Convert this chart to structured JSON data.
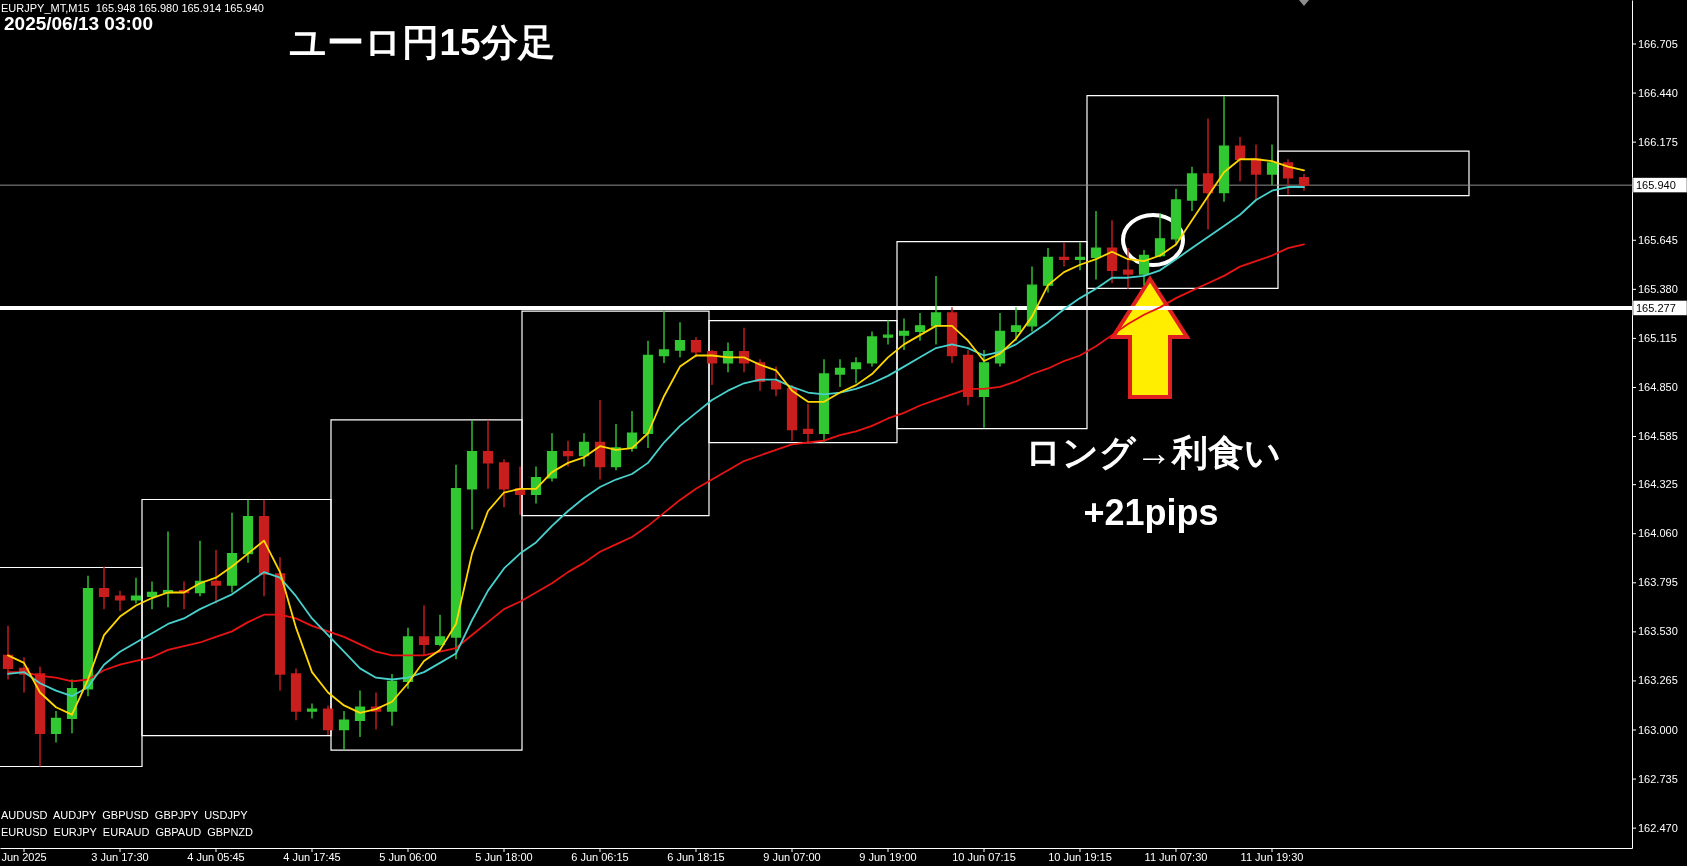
{
  "chart_data": {
    "type": "candlestick",
    "title": "ユーロ円15分足",
    "subtitle": "2025/06/13 03:00",
    "annotations": [
      "EURJPY_MT,M15  165.948 165.980 165.914 165.940",
      "ロング→利食い",
      "+21pips",
      "AUDUSD  AUDJPY  GBPUSD  GBPJPY  USDJPY",
      "EURUSD  EURJPY  EURAUD  GBPAUD  GBPNZD"
    ],
    "categories": [
      null,
      "Jun 2025",
      null,
      null,
      null,
      null,
      null,
      "3 Jun 17:30",
      null,
      null,
      null,
      null,
      null,
      "4 Jun 05:45",
      null,
      null,
      null,
      null,
      null,
      "4 Jun 17:45",
      null,
      null,
      null,
      null,
      null,
      "5 Jun 06:00",
      null,
      null,
      null,
      null,
      null,
      "5 Jun 18:00",
      null,
      null,
      null,
      null,
      null,
      "6 Jun 06:15",
      null,
      null,
      null,
      null,
      null,
      "6 Jun 18:15",
      null,
      null,
      null,
      null,
      null,
      "9 Jun 07:00",
      null,
      null,
      null,
      null,
      null,
      "9 Jun 19:00",
      null,
      null,
      null,
      null,
      null,
      "10 Jun 07:15",
      null,
      null,
      null,
      null,
      null,
      "10 Jun 19:15",
      null,
      null,
      null,
      null,
      null,
      "11 Jun 07:30",
      null,
      null,
      null,
      null,
      null,
      "11 Jun 19:30",
      null,
      null,
      null,
      null,
      null,
      null,
      null,
      null,
      null,
      null,
      null,
      null,
      null,
      null,
      null,
      null,
      null,
      null,
      null,
      null,
      null,
      null
    ],
    "ohlc": [
      [
        163.4,
        163.56,
        163.27,
        163.33
      ],
      [
        163.33,
        163.39,
        163.2,
        163.3
      ],
      [
        163.3,
        163.34,
        162.8,
        162.98
      ],
      [
        162.98,
        163.1,
        162.93,
        163.06
      ],
      [
        163.06,
        163.27,
        162.98,
        163.22
      ],
      [
        163.22,
        163.83,
        163.18,
        163.76
      ],
      [
        163.76,
        163.88,
        163.65,
        163.72
      ],
      [
        163.72,
        163.75,
        163.64,
        163.7
      ],
      [
        163.7,
        163.82,
        163.68,
        163.72
      ],
      [
        163.72,
        163.8,
        163.65,
        163.74
      ],
      [
        163.74,
        164.07,
        163.66,
        163.75
      ],
      [
        163.75,
        163.8,
        163.65,
        163.74
      ],
      [
        163.74,
        164.02,
        163.72,
        163.8
      ],
      [
        163.8,
        163.97,
        163.68,
        163.78
      ],
      [
        163.78,
        164.17,
        163.74,
        163.95
      ],
      [
        163.95,
        164.24,
        163.9,
        164.15
      ],
      [
        164.15,
        164.24,
        163.72,
        163.84
      ],
      [
        163.84,
        163.93,
        163.21,
        163.3
      ],
      [
        163.3,
        163.33,
        163.05,
        163.1
      ],
      [
        163.1,
        163.14,
        163.06,
        163.11
      ],
      [
        163.11,
        163.13,
        162.97,
        163.0
      ],
      [
        163.0,
        163.1,
        162.89,
        163.05
      ],
      [
        163.05,
        163.21,
        162.96,
        163.12
      ],
      [
        163.12,
        163.2,
        163.0,
        163.1
      ],
      [
        163.1,
        163.3,
        163.02,
        163.26
      ],
      [
        163.26,
        163.55,
        163.22,
        163.5
      ],
      [
        163.5,
        163.67,
        163.4,
        163.46
      ],
      [
        163.46,
        163.62,
        163.45,
        163.5
      ],
      [
        163.5,
        164.43,
        163.38,
        164.3
      ],
      [
        164.3,
        164.67,
        164.08,
        164.5
      ],
      [
        164.5,
        164.67,
        164.3,
        164.44
      ],
      [
        164.44,
        164.46,
        164.2,
        164.3
      ],
      [
        164.3,
        164.42,
        164.16,
        164.27
      ],
      [
        164.27,
        164.42,
        164.22,
        164.36
      ],
      [
        164.36,
        164.6,
        164.34,
        164.5
      ],
      [
        164.5,
        164.56,
        164.42,
        164.48
      ],
      [
        164.48,
        164.6,
        164.42,
        164.55
      ],
      [
        164.55,
        164.78,
        164.35,
        164.42
      ],
      [
        164.42,
        164.65,
        164.4,
        164.52
      ],
      [
        164.52,
        164.72,
        164.5,
        164.6
      ],
      [
        164.6,
        165.1,
        164.52,
        165.02
      ],
      [
        165.02,
        165.26,
        164.98,
        165.05
      ],
      [
        165.05,
        165.2,
        165.01,
        165.1
      ],
      [
        165.1,
        165.12,
        165.01,
        165.04
      ],
      [
        165.04,
        165.05,
        164.86,
        164.98
      ],
      [
        164.98,
        165.09,
        164.93,
        165.04
      ],
      [
        165.04,
        165.17,
        164.93,
        164.98
      ],
      [
        164.98,
        165.0,
        164.83,
        164.88
      ],
      [
        164.88,
        164.96,
        164.8,
        164.84
      ],
      [
        164.84,
        164.86,
        164.56,
        164.62
      ],
      [
        164.62,
        164.76,
        164.55,
        164.6
      ],
      [
        164.6,
        165.0,
        164.55,
        164.92
      ],
      [
        164.92,
        165.0,
        164.85,
        164.95
      ],
      [
        164.95,
        165.01,
        164.87,
        164.98
      ],
      [
        164.98,
        165.15,
        164.96,
        165.12
      ],
      [
        165.12,
        165.21,
        165.08,
        165.13
      ],
      [
        165.13,
        165.22,
        165.05,
        165.15
      ],
      [
        165.15,
        165.25,
        165.1,
        165.18
      ],
      [
        165.18,
        165.45,
        165.08,
        165.25
      ],
      [
        165.25,
        165.28,
        164.98,
        165.02
      ],
      [
        165.02,
        165.05,
        164.75,
        164.8
      ],
      [
        164.8,
        165.05,
        164.63,
        164.98
      ],
      [
        164.98,
        165.25,
        164.96,
        165.15
      ],
      [
        165.15,
        165.28,
        165.1,
        165.18
      ],
      [
        165.18,
        165.5,
        165.15,
        165.4
      ],
      [
        165.4,
        165.6,
        165.36,
        165.55
      ],
      [
        165.55,
        165.63,
        165.5,
        165.54
      ],
      [
        165.54,
        165.63,
        165.48,
        165.55
      ],
      [
        165.55,
        165.8,
        165.43,
        165.6
      ],
      [
        165.6,
        165.75,
        165.41,
        165.48
      ],
      [
        165.48,
        165.6,
        165.38,
        165.46
      ],
      [
        165.46,
        165.59,
        165.4,
        165.56
      ],
      [
        165.56,
        165.79,
        165.55,
        165.65
      ],
      [
        165.65,
        165.92,
        165.62,
        165.86
      ],
      [
        165.86,
        166.04,
        165.8,
        166.0
      ],
      [
        166.0,
        166.3,
        165.7,
        165.9
      ],
      [
        165.9,
        166.42,
        165.85,
        166.15
      ],
      [
        166.15,
        166.2,
        165.96,
        166.08
      ],
      [
        166.08,
        166.16,
        165.86,
        166.0
      ],
      [
        166.0,
        166.16,
        165.94,
        166.06
      ],
      [
        166.06,
        166.08,
        165.89,
        165.98
      ],
      [
        165.98,
        166.0,
        165.91,
        165.94
      ],
      null,
      null,
      null,
      null,
      null,
      null,
      null,
      null,
      null,
      null,
      null,
      null,
      null,
      null,
      null,
      null,
      null,
      null,
      null,
      null
    ],
    "colors": [
      "#c81e1e",
      "#c81e1e",
      "#c81e1e",
      "#32c832",
      "#32c832",
      "#32c832",
      "#c81e1e",
      "#c81e1e",
      "#32c832",
      "#32c832",
      "#32c832",
      "#c81e1e",
      "#32c832",
      "#c81e1e",
      "#32c832",
      "#32c832",
      "#c81e1e",
      "#c81e1e",
      "#c81e1e",
      "#32c832",
      "#c81e1e",
      "#32c832",
      "#32c832",
      "#c81e1e",
      "#32c832",
      "#32c832",
      "#c81e1e",
      "#32c832",
      "#32c832",
      "#32c832",
      "#c81e1e",
      "#c81e1e",
      "#c81e1e",
      "#32c832",
      "#32c832",
      "#c81e1e",
      "#32c832",
      "#c81e1e",
      "#32c832",
      "#32c832",
      "#32c832",
      "#32c832",
      "#32c832",
      "#c81e1e",
      "#c81e1e",
      "#32c832",
      "#c81e1e",
      "#c81e1e",
      "#c81e1e",
      "#c81e1e",
      "#c81e1e",
      "#32c832",
      "#32c832",
      "#32c832",
      "#32c832",
      "#32c832",
      "#32c832",
      "#32c832",
      "#32c832",
      "#c81e1e",
      "#c81e1e",
      "#32c832",
      "#32c832",
      "#32c832",
      "#32c832",
      "#32c832",
      "#c81e1e",
      "#32c832",
      "#32c832",
      "#c81e1e",
      "#c81e1e",
      "#32c832",
      "#32c832",
      "#32c832",
      "#32c832",
      "#c81e1e",
      "#32c832",
      "#c81e1e",
      "#c81e1e",
      "#32c832",
      "#c81e1e",
      "#c81e1e",
      null,
      null,
      null,
      null,
      null,
      null,
      null,
      null,
      null,
      null,
      null,
      null,
      null,
      null,
      null,
      null,
      null,
      null,
      null,
      null
    ],
    "series": [
      {
        "type": "line",
        "color": "#e81414",
        "values": [
          163.31,
          163.31,
          163.29,
          163.28,
          163.26,
          163.27,
          163.32,
          163.35,
          163.37,
          163.39,
          163.43,
          163.45,
          163.47,
          163.5,
          163.53,
          163.58,
          163.62,
          163.62,
          163.6,
          163.56,
          163.53,
          163.5,
          163.46,
          163.42,
          163.4,
          163.4,
          163.4,
          163.42,
          163.44,
          163.51,
          163.58,
          163.65,
          163.69,
          163.74,
          163.79,
          163.85,
          163.9,
          163.96,
          164.0,
          164.04,
          164.1,
          164.17,
          164.24,
          164.3,
          164.35,
          164.4,
          164.45,
          164.48,
          164.51,
          164.54,
          164.55,
          164.56,
          164.59,
          164.61,
          164.64,
          164.68,
          164.71,
          164.75,
          164.78,
          164.81,
          164.84,
          164.84,
          164.85,
          164.88,
          164.92,
          164.95,
          164.99,
          165.02,
          165.07,
          165.13,
          165.19,
          165.24,
          165.28,
          165.33,
          165.37,
          165.41,
          165.45,
          165.5,
          165.53,
          165.56,
          165.6,
          165.62,
          null,
          null,
          null,
          null,
          null,
          null,
          null,
          null,
          null,
          null,
          null,
          null,
          null,
          null,
          null,
          null,
          null,
          null,
          null,
          null
        ]
      },
      {
        "type": "line",
        "color": "#48d1cc",
        "values": [
          163.3,
          163.31,
          163.25,
          163.21,
          163.18,
          163.23,
          163.35,
          163.42,
          163.47,
          163.52,
          163.57,
          163.6,
          163.65,
          163.69,
          163.73,
          163.79,
          163.85,
          163.82,
          163.72,
          163.6,
          163.51,
          163.42,
          163.33,
          163.28,
          163.27,
          163.28,
          163.31,
          163.36,
          163.41,
          163.59,
          163.75,
          163.87,
          163.95,
          164.01,
          164.1,
          164.18,
          164.25,
          164.31,
          164.35,
          164.38,
          164.44,
          164.55,
          164.64,
          164.71,
          164.78,
          164.83,
          164.87,
          164.89,
          164.89,
          164.85,
          164.82,
          164.81,
          164.82,
          164.84,
          164.87,
          164.91,
          164.96,
          165.01,
          165.06,
          165.08,
          165.06,
          165.02,
          165.04,
          165.08,
          165.14,
          165.2,
          165.27,
          165.33,
          165.38,
          165.44,
          165.44,
          165.45,
          165.48,
          165.54,
          165.6,
          165.66,
          165.72,
          165.78,
          165.86,
          165.91,
          165.93,
          165.93,
          null,
          null,
          null,
          null,
          null,
          null,
          null,
          null,
          null,
          null,
          null,
          null,
          null,
          null,
          null,
          null,
          null,
          null,
          null,
          null
        ]
      },
      {
        "type": "line",
        "color": "#ffd700",
        "values": [
          163.4,
          163.36,
          163.2,
          163.12,
          163.08,
          163.27,
          163.51,
          163.61,
          163.67,
          163.71,
          163.74,
          163.74,
          163.79,
          163.82,
          163.88,
          163.95,
          164.02,
          163.85,
          163.55,
          163.31,
          163.2,
          163.13,
          163.09,
          163.11,
          163.15,
          163.25,
          163.37,
          163.43,
          163.57,
          163.95,
          164.18,
          164.28,
          164.3,
          164.3,
          164.39,
          164.44,
          164.47,
          164.53,
          164.51,
          164.52,
          164.6,
          164.8,
          164.96,
          165.02,
          165.02,
          165.01,
          165.01,
          164.97,
          164.94,
          164.83,
          164.77,
          164.77,
          164.82,
          164.86,
          164.92,
          165.01,
          165.08,
          165.13,
          165.18,
          165.18,
          165.1,
          164.99,
          165.03,
          165.11,
          165.23,
          165.4,
          165.47,
          165.51,
          165.54,
          165.58,
          165.54,
          165.53,
          165.56,
          165.62,
          165.75,
          165.88,
          166.01,
          166.08,
          166.08,
          166.07,
          166.04,
          166.02,
          null,
          null,
          null,
          null,
          null,
          null,
          null,
          null,
          null,
          null,
          null,
          null,
          null,
          null,
          null,
          null,
          null,
          null,
          null,
          null
        ]
      }
    ],
    "ref_lines": [
      {
        "axis": "y",
        "value": 165.277,
        "label": "165.277",
        "color": "#ffffff"
      },
      {
        "axis": "y",
        "value": 165.94,
        "label": "165.940",
        "color": "#8c8c8c"
      }
    ],
    "ylim": [
      162.36,
      166.94
    ],
    "yticks": [
      166.705,
      {
        "value": 166.44,
        "label": "166.440"
      },
      166.175,
      {
        "value": 165.91,
        "label": null
      },
      165.645,
      {
        "value": 165.38,
        "label": "165.380"
      },
      165.115,
      {
        "value": 164.85,
        "label": "164.850"
      },
      164.585,
      164.325,
      {
        "value": 164.06,
        "label": "164.060"
      },
      163.795,
      {
        "value": 163.53,
        "label": "163.530"
      },
      163.265,
      {
        "value": 163.0,
        "label": "163.000"
      },
      162.735,
      {
        "value": 162.47,
        "label": "162.470"
      }
    ]
  }
}
